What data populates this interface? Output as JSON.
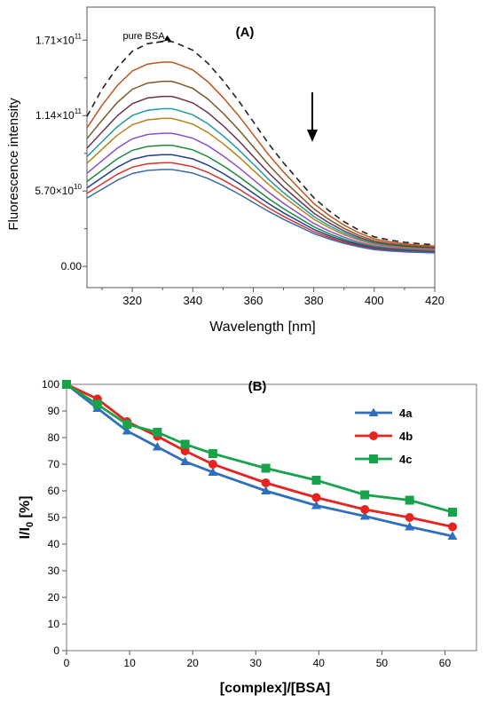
{
  "chart_data": [
    {
      "type": "line",
      "panel_label": "(A)",
      "xlabel": "Wavelength [nm]",
      "ylabel": "Fluorescence intensity",
      "xlim": [
        305,
        420
      ],
      "ylim": [
        -16000000000.0,
        196000000000.0
      ],
      "x_ticks": [
        320,
        340,
        360,
        380,
        400,
        420
      ],
      "x_tick_labels": [
        "320",
        "340",
        "360",
        "380",
        "400",
        "420"
      ],
      "y_ticks": [
        0,
        57000000000.0,
        114000000000.0,
        171000000000.0
      ],
      "y_tick_labels": [
        {
          "mantissa": "0.00",
          "exp": ""
        },
        {
          "mantissa": "5.70×10",
          "exp": "10"
        },
        {
          "mantissa": "1.14×10",
          "exp": "11"
        },
        {
          "mantissa": "1.71×10",
          "exp": "11"
        }
      ],
      "annotation": "pure BSA",
      "arrow": "down",
      "pure_bsa_peak": {
        "x": 333,
        "y": 170000000000.0
      },
      "x": [
        305,
        310,
        315,
        320,
        325,
        330,
        333,
        335,
        340,
        345,
        350,
        355,
        360,
        365,
        370,
        375,
        380,
        385,
        390,
        395,
        400,
        405,
        410,
        415,
        420
      ],
      "series": [
        {
          "name": "pure BSA",
          "color": "#222222",
          "dashed": true,
          "peak": 170000000000.0
        },
        {
          "color": "#c0541c",
          "peak": 155000000000.0
        },
        {
          "color": "#7a5a2a",
          "peak": 141000000000.0
        },
        {
          "color": "#6e3350",
          "peak": 130000000000.0
        },
        {
          "color": "#1e99a8",
          "peak": 121000000000.0
        },
        {
          "color": "#b5821e",
          "peak": 114000000000.0
        },
        {
          "color": "#8a4fcf",
          "peak": 103000000000.0
        },
        {
          "color": "#1c8a3c",
          "peak": 94000000000.0
        },
        {
          "color": "#1f3f8f",
          "peak": 87000000000.0
        },
        {
          "color": "#d8312c",
          "peak": 81000000000.0
        },
        {
          "color": "#3a6aa8",
          "peak": 76000000000.0
        }
      ],
      "profile": [
        0.68,
        0.78,
        0.88,
        0.955,
        0.99,
        1.0,
        1.0,
        0.99,
        0.96,
        0.9,
        0.82,
        0.73,
        0.63,
        0.53,
        0.44,
        0.36,
        0.28,
        0.22,
        0.17,
        0.13,
        0.1,
        0.085,
        0.075,
        0.068,
        0.063
      ]
    },
    {
      "type": "line",
      "panel_label": "(B)",
      "xlabel": "[complex]/[BSA]",
      "ylabel_main": "I/I",
      "ylabel_sub": "0",
      "ylabel_tail": " [%]",
      "xlim": [
        0,
        65
      ],
      "ylim": [
        0,
        100
      ],
      "x_ticks": [
        0,
        10,
        20,
        30,
        40,
        50,
        60
      ],
      "x_tick_labels": [
        "0",
        "10",
        "20",
        "30",
        "40",
        "50",
        "60"
      ],
      "y_ticks": [
        0,
        10,
        20,
        30,
        40,
        50,
        60,
        70,
        80,
        90,
        100
      ],
      "y_tick_labels": [
        "0",
        "10",
        "20",
        "30",
        "40",
        "50",
        "60",
        "70",
        "80",
        "90",
        "100"
      ],
      "legend_position": "top-right",
      "x": [
        0,
        4.9,
        9.6,
        14.4,
        18.8,
        23.2,
        31.6,
        39.6,
        47.3,
        54.4,
        61.2
      ],
      "series": [
        {
          "name": "4a",
          "color": "#2f6fbe",
          "marker": "triangle",
          "values": [
            100,
            91,
            82.5,
            76.5,
            71,
            67,
            60,
            54.5,
            50.5,
            46.5,
            43
          ]
        },
        {
          "name": "4b",
          "color": "#e8221c",
          "marker": "circle",
          "values": [
            100,
            94.5,
            86,
            80.5,
            75,
            70,
            63,
            57.5,
            53,
            50,
            46.5
          ]
        },
        {
          "name": "4c",
          "color": "#17a34a",
          "marker": "square",
          "values": [
            100,
            92.5,
            85,
            82,
            77.5,
            74,
            68.5,
            64,
            58.5,
            56.5,
            52
          ]
        }
      ]
    }
  ]
}
